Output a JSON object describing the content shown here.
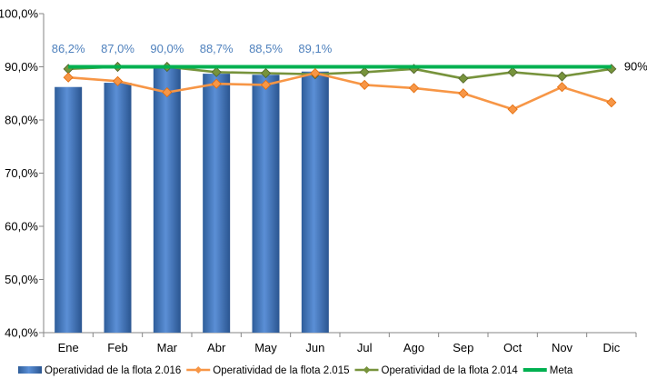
{
  "chart_data": {
    "type": "bar",
    "categories": [
      "Ene",
      "Feb",
      "Mar",
      "Abr",
      "May",
      "Jun",
      "Jul",
      "Ago",
      "Sep",
      "Oct",
      "Nov",
      "Dic"
    ],
    "ylim": [
      40,
      100
    ],
    "yticks": [
      "40,0%",
      "50,0%",
      "60,0%",
      "70,0%",
      "80,0%",
      "90,0%",
      "100,0%"
    ],
    "yticks_values": [
      40,
      50,
      60,
      70,
      80,
      90,
      100
    ],
    "grid": false,
    "legend": "bottom",
    "series": [
      {
        "name": "Operatividad de la flota 2.016",
        "kind": "bar",
        "color": "#4f81bd",
        "values": [
          86.2,
          87.0,
          90.0,
          88.7,
          88.5,
          89.1,
          null,
          null,
          null,
          null,
          null,
          null
        ],
        "labels": [
          "86,2%",
          "87,0%",
          "90,0%",
          "88,7%",
          "88,5%",
          "89,1%"
        ]
      },
      {
        "name": "Operatividad de la flota 2.015",
        "kind": "line",
        "color": "#f79646",
        "values": [
          88.0,
          87.3,
          85.2,
          86.8,
          86.6,
          88.8,
          86.6,
          86.0,
          85.0,
          82.0,
          86.2,
          83.3
        ]
      },
      {
        "name": "Operatividad de la flota 2.014",
        "kind": "line",
        "color": "#77933c",
        "values": [
          89.6,
          90.0,
          90.0,
          89.0,
          88.8,
          88.6,
          89.0,
          89.6,
          87.8,
          89.0,
          88.2,
          89.6
        ]
      },
      {
        "name": "Meta",
        "kind": "line",
        "color": "#00b050",
        "values": [
          90,
          90,
          90,
          90,
          90,
          90,
          90,
          90,
          90,
          90,
          90,
          90
        ],
        "end_label": "90%"
      }
    ]
  }
}
